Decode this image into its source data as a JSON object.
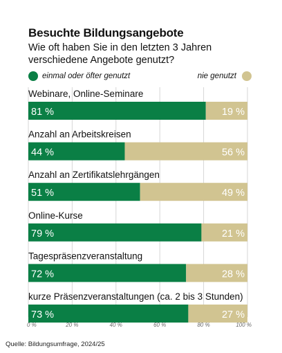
{
  "header": {
    "title": "Besuchte Bildungsangebote",
    "subtitle": "Wie oft haben Sie in den letzten 3 Jahren verschiedene Angebote genutzt?"
  },
  "legend": {
    "used_label": "einmal oder öfter genutzt",
    "unused_label": "nie genutzt"
  },
  "colors": {
    "used": "#0a7f45",
    "unused": "#d1c491",
    "grid": "#d6d6d6",
    "axis_text": "#666666"
  },
  "chart_data": {
    "type": "bar",
    "orientation": "horizontal",
    "stacked": true,
    "categories": [
      "Webinare, Online-Seminare",
      "Anzahl an Arbeitskreisen",
      "Anzahl an Zertifikatslehrgängen",
      "Online-Kurse",
      "Tagespräsenzveranstaltung",
      "kurze Präsenzveranstaltungen (ca. 2 bis 3 Stunden)"
    ],
    "series": [
      {
        "name": "einmal oder öfter genutzt",
        "values": [
          81,
          44,
          51,
          79,
          72,
          73
        ]
      },
      {
        "name": "nie genutzt",
        "values": [
          19,
          56,
          49,
          21,
          28,
          27
        ]
      }
    ],
    "value_labels": {
      "used": [
        "81 %",
        "44 %",
        "51 %",
        "79 %",
        "72 %",
        "73 %"
      ],
      "unused": [
        "19 %",
        "56 %",
        "49 %",
        "21 %",
        "28 %",
        "27 %"
      ]
    },
    "xlim": [
      0,
      100
    ],
    "xticks": [
      0,
      20,
      40,
      60,
      80,
      100
    ],
    "xtick_labels": [
      "0 %",
      "20 %",
      "40 %",
      "60 %",
      "80 %",
      "100 %"
    ],
    "grid": true,
    "legend_position": "top"
  },
  "footer": {
    "source": "Quelle: Bildungsumfrage, 2024/25"
  }
}
